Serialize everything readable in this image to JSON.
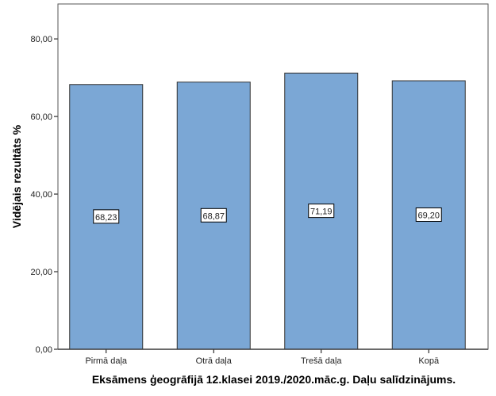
{
  "chart_data": {
    "type": "bar",
    "categories": [
      "Pirmā daļa",
      "Otrā daļa",
      "Trešā daļa",
      "Kopā"
    ],
    "values": [
      68.23,
      68.87,
      71.19,
      69.2
    ],
    "data_labels": [
      "68,23",
      "68,87",
      "71,19",
      "69,20"
    ],
    "xlabel": "Eksāmens ģeogrāfijā 12.klasei 2019./2020.māc.g. Daļu salīdzinājums.",
    "ylabel": "Vidējais rezultāts %",
    "ylim": [
      0,
      89
    ],
    "yticks": [
      0,
      20,
      40,
      60,
      80
    ],
    "ytick_labels": [
      "0,00",
      "20,00",
      "40,00",
      "60,00",
      "80,00"
    ],
    "grid": false,
    "bar_color": "#7ba7d5"
  }
}
